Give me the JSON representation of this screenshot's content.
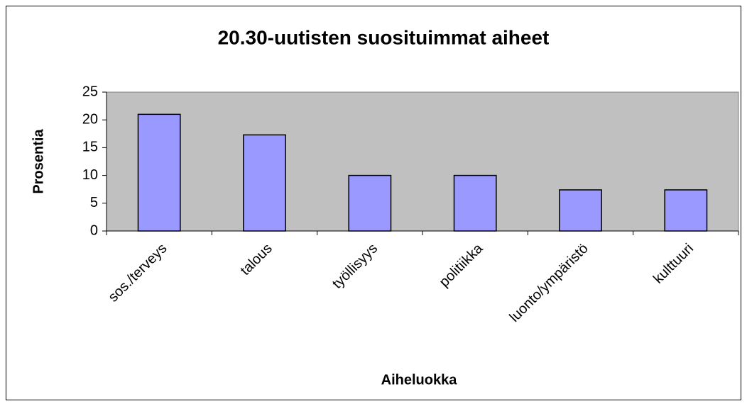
{
  "chart_data": {
    "type": "bar",
    "title": "20.30-uutisten suosituimmat aiheet",
    "x_label": "Aiheluokka",
    "y_label": "Prosentia",
    "categories": [
      "sos./terveys",
      "talous",
      "työllisyys",
      "politiikka",
      "luonto/ympäristö",
      "kulttuuri"
    ],
    "values": [
      21,
      17.3,
      10,
      10,
      7.4,
      7.4
    ],
    "color": "#9999ff",
    "ylim": [
      0,
      25
    ],
    "yticks": [
      0,
      5,
      10,
      15,
      20,
      25
    ],
    "grid": false
  }
}
